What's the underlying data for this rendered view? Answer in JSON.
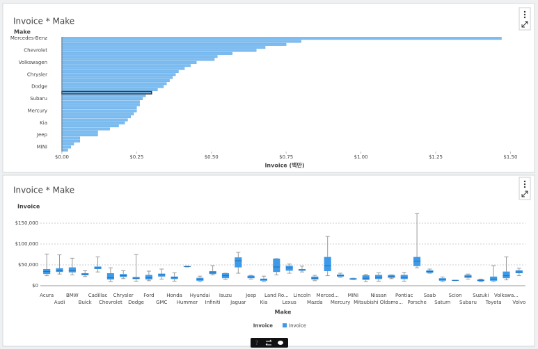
{
  "chart_data": [
    {
      "type": "hbar",
      "title": "Invoice * Make",
      "y_label": "Make",
      "x_label": "Invoice (백만)",
      "color": "#7cbcf0",
      "categories": [
        "Mercedes-Benz",
        null,
        null,
        null,
        "Chevrolet",
        null,
        null,
        null,
        "Volkswagen",
        null,
        null,
        null,
        "Chrysler",
        null,
        null,
        null,
        "Dodge",
        null,
        null,
        null,
        "Subaru",
        null,
        null,
        null,
        "Mercury",
        null,
        null,
        null,
        "Kia",
        null,
        null,
        null,
        "Jeep",
        null,
        null,
        null,
        "MINI",
        null
      ],
      "values": [
        1.47,
        0.8,
        0.75,
        0.68,
        0.65,
        0.57,
        0.52,
        0.51,
        0.45,
        0.43,
        0.41,
        0.39,
        0.38,
        0.37,
        0.36,
        0.35,
        0.34,
        0.32,
        0.3,
        0.28,
        0.27,
        0.26,
        0.26,
        0.25,
        0.25,
        0.24,
        0.23,
        0.22,
        0.21,
        0.19,
        0.16,
        0.12,
        0.12,
        0.06,
        0.06,
        0.04,
        0.03,
        0.02
      ],
      "xlim": [
        -0.03,
        1.52
      ],
      "xticks": [
        {
          "value": 0,
          "label": "$0.00"
        },
        {
          "value": 0.25,
          "label": "$0.25"
        },
        {
          "value": 0.5,
          "label": "$0.50"
        },
        {
          "value": 0.75,
          "label": "$0.75"
        },
        {
          "value": 1.0,
          "label": "$1.00"
        },
        {
          "value": 1.25,
          "label": "$1.25"
        },
        {
          "value": 1.5,
          "label": "$1.50"
        }
      ],
      "grid": false
    },
    {
      "type": "box",
      "title": "Invoice * Make",
      "y_label": "Invoice",
      "x_label": "Make",
      "legend_title": "Invoice",
      "grid": true,
      "categories": [
        "Acura",
        "Audi",
        "BMW",
        "Buick",
        "Cadillac",
        "Chevrolet",
        "Chrysler",
        "Dodge",
        "Ford",
        "GMC",
        "Honda",
        "Hummer",
        "Hyundai",
        "Infiniti",
        "Isuzu",
        "Jaguar",
        "Jeep",
        "Kia",
        "Land Ro...",
        "Lexus",
        "Lincoln",
        "Mazda",
        "Merced...",
        "Mercury",
        "MINI",
        "Mitsubishi",
        "Nissan",
        "Oldsmo...",
        "Pontiac",
        "Porsche",
        "Saab",
        "Saturn",
        "Scion",
        "Subaru",
        "Suzuki",
        "Toyota",
        "Volkswa...",
        "Volvo"
      ],
      "series": [
        {
          "name": "Invoice",
          "color": "#3d9ae8",
          "min": [
            24000,
            28000,
            26000,
            22000,
            33000,
            10000,
            17000,
            11000,
            12000,
            16000,
            11000,
            45000,
            10000,
            26000,
            15000,
            30000,
            16000,
            10000,
            26000,
            30000,
            33000,
            12000,
            24000,
            20000,
            15000,
            10000,
            11000,
            17000,
            11000,
            43000,
            30000,
            10000,
            12000,
            16000,
            10000,
            10000,
            14000,
            24000
          ],
          "q1": [
            28000,
            33000,
            32000,
            25000,
            40000,
            15000,
            21000,
            16000,
            15000,
            22000,
            16000,
            46000,
            12000,
            28000,
            18000,
            44000,
            18000,
            12000,
            33000,
            36000,
            36000,
            15000,
            35000,
            22000,
            15000,
            14000,
            16000,
            19000,
            16000,
            47000,
            31000,
            12000,
            12000,
            19000,
            11000,
            12000,
            18000,
            30000
          ],
          "median": [
            34000,
            36000,
            36000,
            28000,
            43000,
            19000,
            24000,
            18000,
            19000,
            26000,
            19000,
            46000,
            15000,
            32000,
            24000,
            60000,
            21000,
            15000,
            45000,
            43000,
            38000,
            18000,
            48000,
            24000,
            16000,
            18000,
            20000,
            22000,
            20000,
            59000,
            34000,
            15000,
            13000,
            22000,
            13000,
            16000,
            24000,
            33000
          ],
          "q3": [
            40000,
            42000,
            44000,
            30000,
            46000,
            30000,
            28000,
            21000,
            26000,
            29000,
            22000,
            47000,
            19000,
            35000,
            30000,
            68000,
            24000,
            17000,
            65000,
            48000,
            40000,
            22000,
            69000,
            27000,
            18000,
            25000,
            26000,
            26000,
            26000,
            69000,
            37000,
            18000,
            13000,
            26000,
            15000,
            22000,
            34000,
            37000
          ],
          "max": [
            76000,
            74000,
            66000,
            36000,
            69000,
            43000,
            36000,
            75000,
            35000,
            40000,
            31000,
            47000,
            23000,
            48000,
            30000,
            80000,
            25000,
            23000,
            65000,
            52000,
            47000,
            25000,
            118000,
            30000,
            18000,
            27000,
            31000,
            26000,
            32000,
            173000,
            40000,
            21000,
            13000,
            28000,
            16000,
            48000,
            69000,
            42000
          ]
        }
      ],
      "ylim": [
        0,
        190000
      ],
      "yticks": [
        {
          "value": 0,
          "label": "$0"
        },
        {
          "value": 50000,
          "label": "$50,000"
        },
        {
          "value": 100000,
          "label": "$100,000"
        },
        {
          "value": 150000,
          "label": "$150,000"
        }
      ]
    }
  ],
  "toolbar": {
    "help": "?"
  }
}
